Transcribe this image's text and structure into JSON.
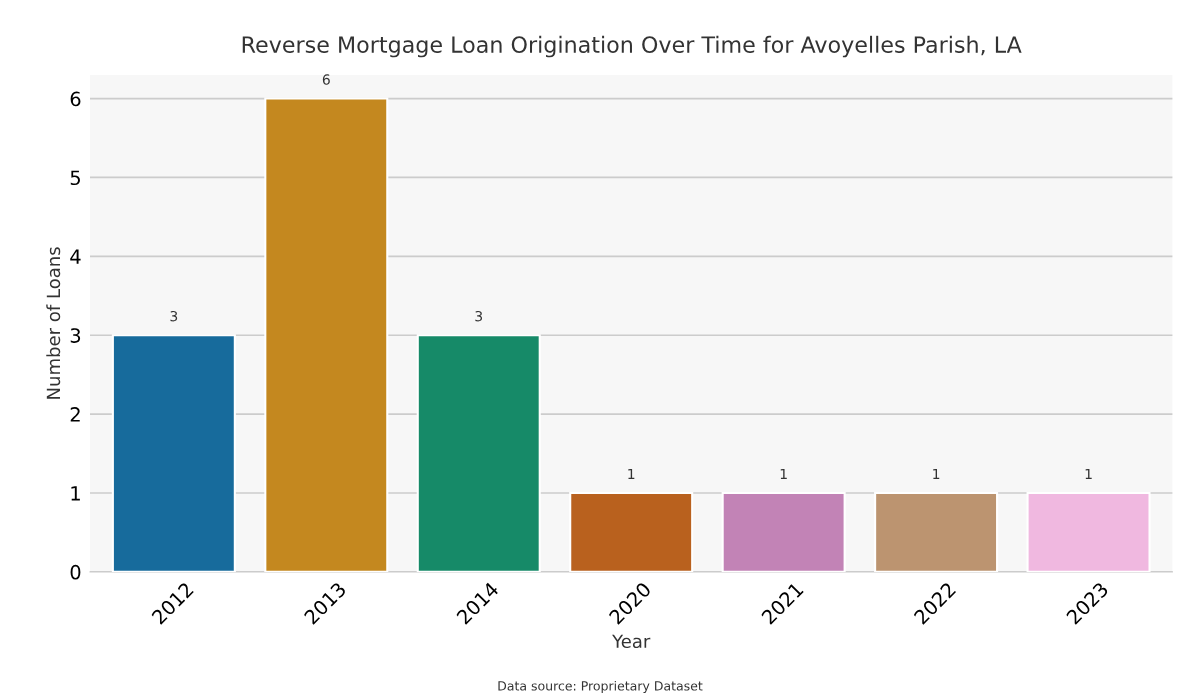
{
  "chart_data": {
    "type": "bar",
    "title": "Reverse Mortgage Loan Origination Over Time for Avoyelles Parish, LA",
    "xlabel": "Year",
    "ylabel": "Number of Loans",
    "categories": [
      "2012",
      "2013",
      "2014",
      "2020",
      "2021",
      "2022",
      "2023"
    ],
    "values": [
      3,
      6,
      3,
      1,
      1,
      1,
      1
    ],
    "colors": [
      "#176b9c",
      "#c4881f",
      "#168a68",
      "#b9611e",
      "#c283b6",
      "#bc9470",
      "#f0b8e0"
    ],
    "ylim": [
      0,
      6.3
    ],
    "yticks": [
      0,
      1,
      2,
      3,
      4,
      5,
      6
    ],
    "grid": "y",
    "data_labels": true,
    "annotations": [
      "Data source: Proprietary Dataset"
    ]
  }
}
